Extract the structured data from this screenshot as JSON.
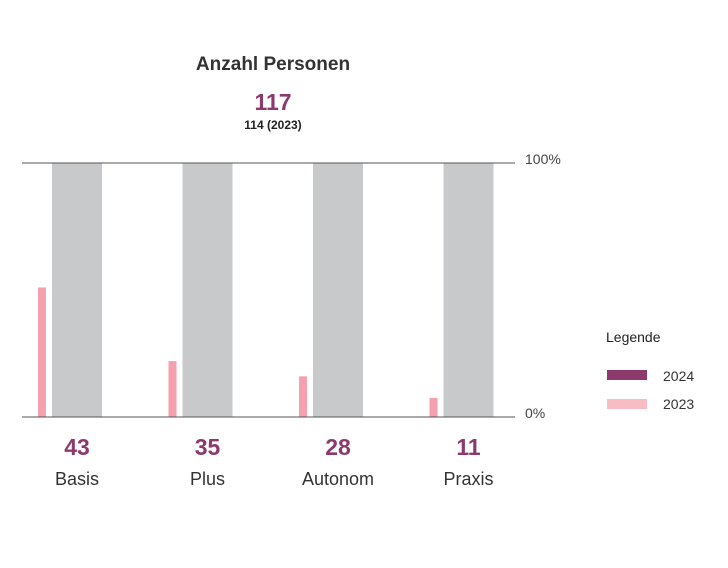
{
  "chart_data": {
    "type": "bar",
    "title": "Anzahl Personen",
    "total": "117",
    "total_previous": "114 (2023)",
    "categories": [
      "Basis",
      "Plus",
      "Autonom",
      "Praxis"
    ],
    "value_labels": [
      "43",
      "35",
      "28",
      "11"
    ],
    "ylim": [
      0,
      100
    ],
    "ytick_labels": [
      "100%",
      "0%"
    ],
    "background_bar_percent": 100,
    "series": [
      {
        "name": "2024",
        "values": [
          null,
          null,
          null,
          null
        ]
      },
      {
        "name": "2023",
        "values": [
          51,
          22,
          16,
          7.5
        ]
      }
    ],
    "legend": {
      "title": "Legende",
      "placement": "right",
      "items": [
        {
          "label": "2024",
          "color": "#8c3a6e"
        },
        {
          "label": "2023",
          "color": "#f7bcc4"
        }
      ]
    },
    "colors": {
      "background_bar": "#c8c9cb",
      "bar_2023": "#f4a0ad",
      "accent": "#8c3a6e"
    }
  }
}
